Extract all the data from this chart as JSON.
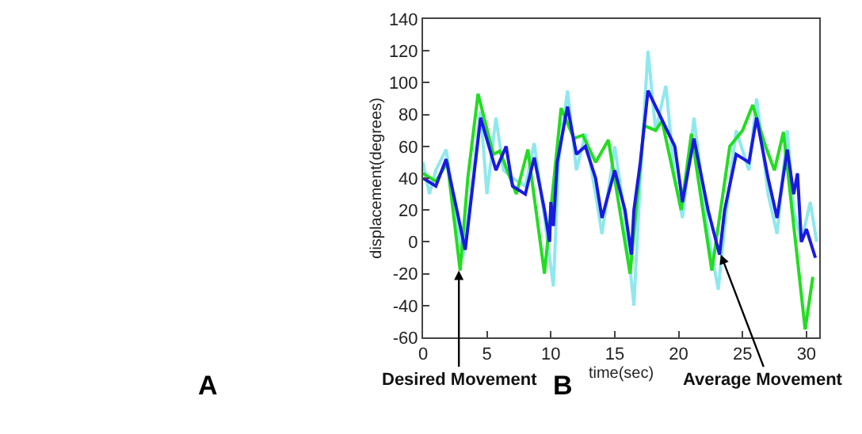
{
  "chart_data": {
    "type": "line",
    "xlabel": "time(sec)",
    "ylabel": "displacement(degrees)",
    "xlim": [
      0,
      31
    ],
    "xticks": [
      0,
      5,
      10,
      15,
      20,
      25,
      30
    ],
    "ylim": [
      -60,
      140
    ],
    "yticks": [
      -60,
      -40,
      -20,
      0,
      20,
      40,
      60,
      80,
      100,
      120,
      140
    ],
    "marker": "none",
    "line_style": "solid",
    "series": [
      {
        "color": "#8fe8ee",
        "x": [
          0,
          0.5,
          1,
          1.8,
          2.5,
          3.1,
          3.6,
          4.5,
          5,
          5.7,
          6.3,
          7,
          8,
          8.7,
          9.5,
          10.2,
          10.6,
          11.3,
          12,
          12.7,
          13.5,
          14,
          15,
          15.8,
          16.5,
          17,
          17.6,
          18.2,
          19,
          19.7,
          20.3,
          21.2,
          22.3,
          23.1,
          23.6,
          24.5,
          25.5,
          26.1,
          27,
          27.7,
          28.5,
          29,
          29.6,
          30.3,
          30.8
        ],
        "values": [
          50,
          30,
          45,
          58,
          20,
          -10,
          20,
          82,
          30,
          78,
          45,
          40,
          35,
          62,
          15,
          -28,
          50,
          95,
          45,
          68,
          30,
          5,
          60,
          15,
          -40,
          40,
          120,
          70,
          98,
          40,
          15,
          78,
          5,
          -30,
          10,
          70,
          45,
          90,
          30,
          5,
          70,
          20,
          0,
          25,
          0
        ]
      },
      {
        "color": "#22dd22",
        "x": [
          0,
          1,
          1.9,
          2.9,
          3.5,
          4.3,
          5.5,
          6,
          7.3,
          8.2,
          9.5,
          10.8,
          11.8,
          12.5,
          13.5,
          14.5,
          16.2,
          17.3,
          18.2,
          18.7,
          20.2,
          21,
          22.6,
          24,
          25,
          25.8,
          26.8,
          27.5,
          28.2,
          29.9,
          30.5
        ],
        "values": [
          43,
          38,
          50,
          -18,
          40,
          93,
          55,
          57,
          30,
          58,
          -20,
          84,
          65,
          67,
          50,
          64,
          -20,
          73,
          70,
          76,
          20,
          68,
          -18,
          60,
          70,
          86,
          60,
          45,
          69,
          -55,
          -22
        ]
      },
      {
        "color": "#1a1ae0",
        "x": [
          0,
          1,
          1.8,
          3.3,
          4.5,
          5.7,
          6.5,
          7,
          8,
          8.7,
          9.5,
          9.9,
          10,
          10.2,
          10.5,
          11.3,
          12,
          12.7,
          13.5,
          14,
          15,
          15.8,
          16.3,
          16.5,
          17,
          17.6,
          18.2,
          19.7,
          20.3,
          21.2,
          22.3,
          23.2,
          23.6,
          24.5,
          25.5,
          26.1,
          27,
          27.7,
          28.5,
          29,
          29.3,
          29.6,
          30,
          30.7
        ],
        "values": [
          40,
          35,
          52,
          -5,
          78,
          45,
          60,
          35,
          30,
          53,
          20,
          0,
          25,
          10,
          50,
          85,
          55,
          60,
          40,
          15,
          45,
          20,
          -8,
          20,
          50,
          95,
          85,
          60,
          25,
          65,
          20,
          -8,
          20,
          55,
          50,
          78,
          40,
          15,
          58,
          30,
          43,
          0,
          8,
          -10
        ]
      }
    ],
    "annotations": [
      {
        "text": "Desired Movement",
        "x": 2.8,
        "y": -18
      },
      {
        "text": "Average Movement",
        "x": 23.3,
        "y": -8
      },
      "A",
      "B"
    ]
  }
}
